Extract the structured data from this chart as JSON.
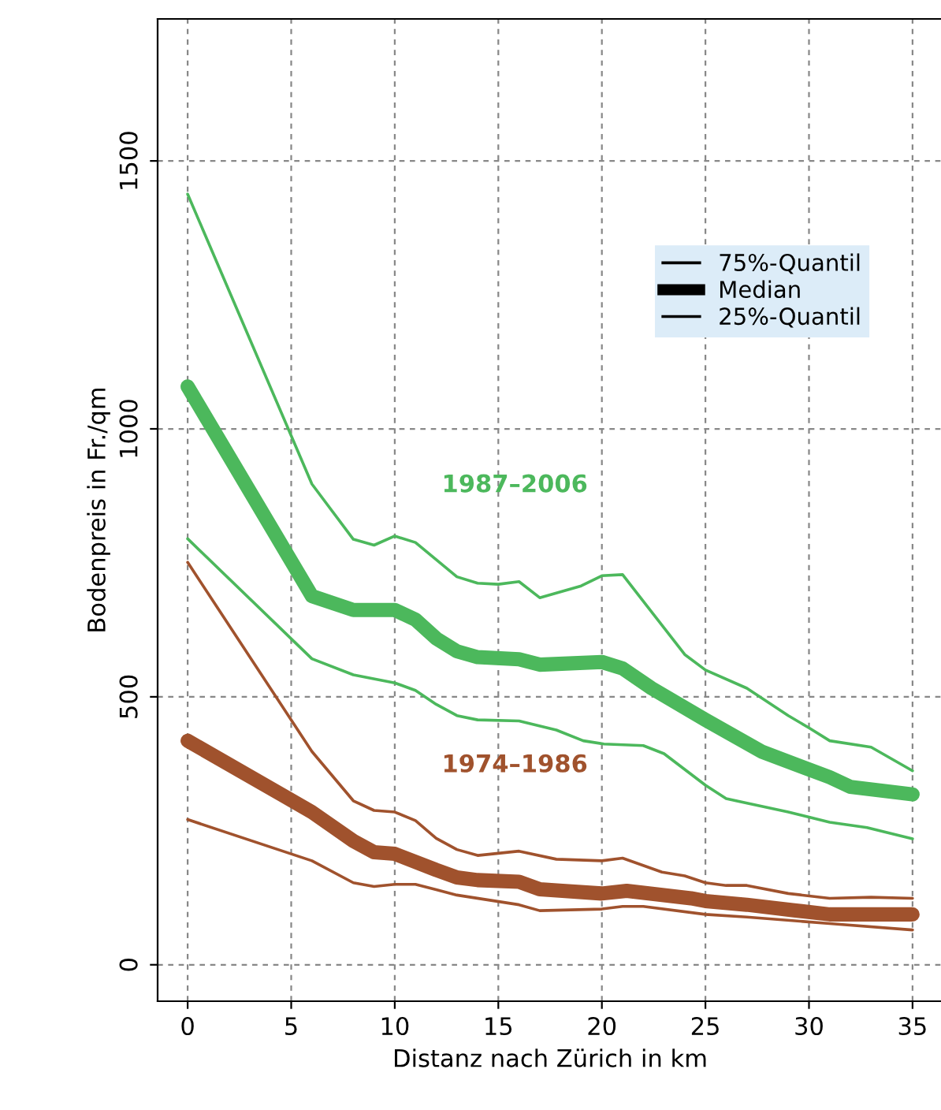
{
  "chart_data": {
    "type": "line",
    "xlabel": "Distanz nach Zürich in km",
    "ylabel": "Bodenpreis in Fr./qm",
    "xlim": [
      -1.45,
      36.45
    ],
    "ylim": [
      -68,
      1765
    ],
    "xticks": [
      0,
      5,
      10,
      15,
      20,
      25,
      30,
      35
    ],
    "yticks": [
      0,
      500,
      1000,
      1500
    ],
    "grid": true,
    "line_style": "solid",
    "marker": "none",
    "annotations": [
      "75%-Quantil",
      "Median",
      "25%-Quantil",
      "1987–2006",
      "1974–1986"
    ],
    "series": [
      {
        "color": "#4cb85c",
        "x": [
          0,
          6,
          8,
          9,
          10,
          11,
          13,
          14,
          15,
          16,
          17,
          19,
          20,
          21,
          24,
          25,
          27,
          29,
          30,
          31,
          33,
          35
        ],
        "values": [
          1438,
          897,
          794,
          783,
          800,
          788,
          724,
          712,
          710,
          715,
          685,
          707,
          726,
          728,
          579,
          550,
          516,
          465,
          442,
          418,
          406,
          362
        ]
      },
      {
        "color": "#4cb85c",
        "x": [
          0,
          6,
          8,
          10,
          11,
          12,
          13,
          14,
          16,
          17,
          20,
          21,
          22.4,
          25,
          27.7,
          31,
          32,
          35
        ],
        "values": [
          1079,
          688,
          662,
          662,
          644,
          609,
          585,
          574,
          570,
          560,
          565,
          553,
          516,
          457,
          398,
          350,
          332,
          318
        ]
      },
      {
        "color": "#4cb85c",
        "x": [
          0,
          6,
          8,
          10,
          11,
          12,
          13,
          14,
          16,
          17.8,
          19.1,
          20.1,
          22,
          23,
          25,
          26,
          29,
          31,
          32.8,
          35
        ],
        "values": [
          795,
          571,
          541,
          526,
          512,
          486,
          465,
          457,
          455,
          438,
          418,
          412,
          409,
          394,
          335,
          310,
          285,
          266,
          256,
          235
        ]
      },
      {
        "color": "#a0522d",
        "x": [
          0,
          6,
          8,
          9,
          10,
          11,
          12,
          13,
          14,
          16,
          17.8,
          20,
          21,
          22.9,
          24,
          25,
          26,
          27,
          29,
          31,
          33,
          35
        ],
        "values": [
          751,
          398,
          306,
          288,
          285,
          269,
          236,
          215,
          204,
          212,
          197,
          194,
          199,
          173,
          166,
          153,
          148,
          148,
          133,
          124,
          126,
          124
        ]
      },
      {
        "color": "#a0522d",
        "x": [
          0,
          6,
          8,
          9,
          10,
          12,
          13,
          14,
          16,
          17,
          18.1,
          20,
          21.2,
          24.3,
          25,
          27,
          29.2,
          31,
          35
        ],
        "values": [
          418,
          285,
          231,
          210,
          207,
          177,
          163,
          158,
          155,
          141,
          138,
          133,
          138,
          124,
          119,
          112,
          102,
          94,
          94
        ]
      },
      {
        "color": "#a0522d",
        "x": [
          0,
          6,
          8,
          9,
          10,
          11,
          12,
          13,
          16,
          17,
          20,
          21,
          22,
          25,
          27,
          31,
          35
        ],
        "values": [
          271,
          194,
          153,
          146,
          150,
          150,
          140,
          130,
          112,
          101,
          104,
          109,
          109,
          94,
          89,
          77,
          65
        ]
      }
    ]
  }
}
